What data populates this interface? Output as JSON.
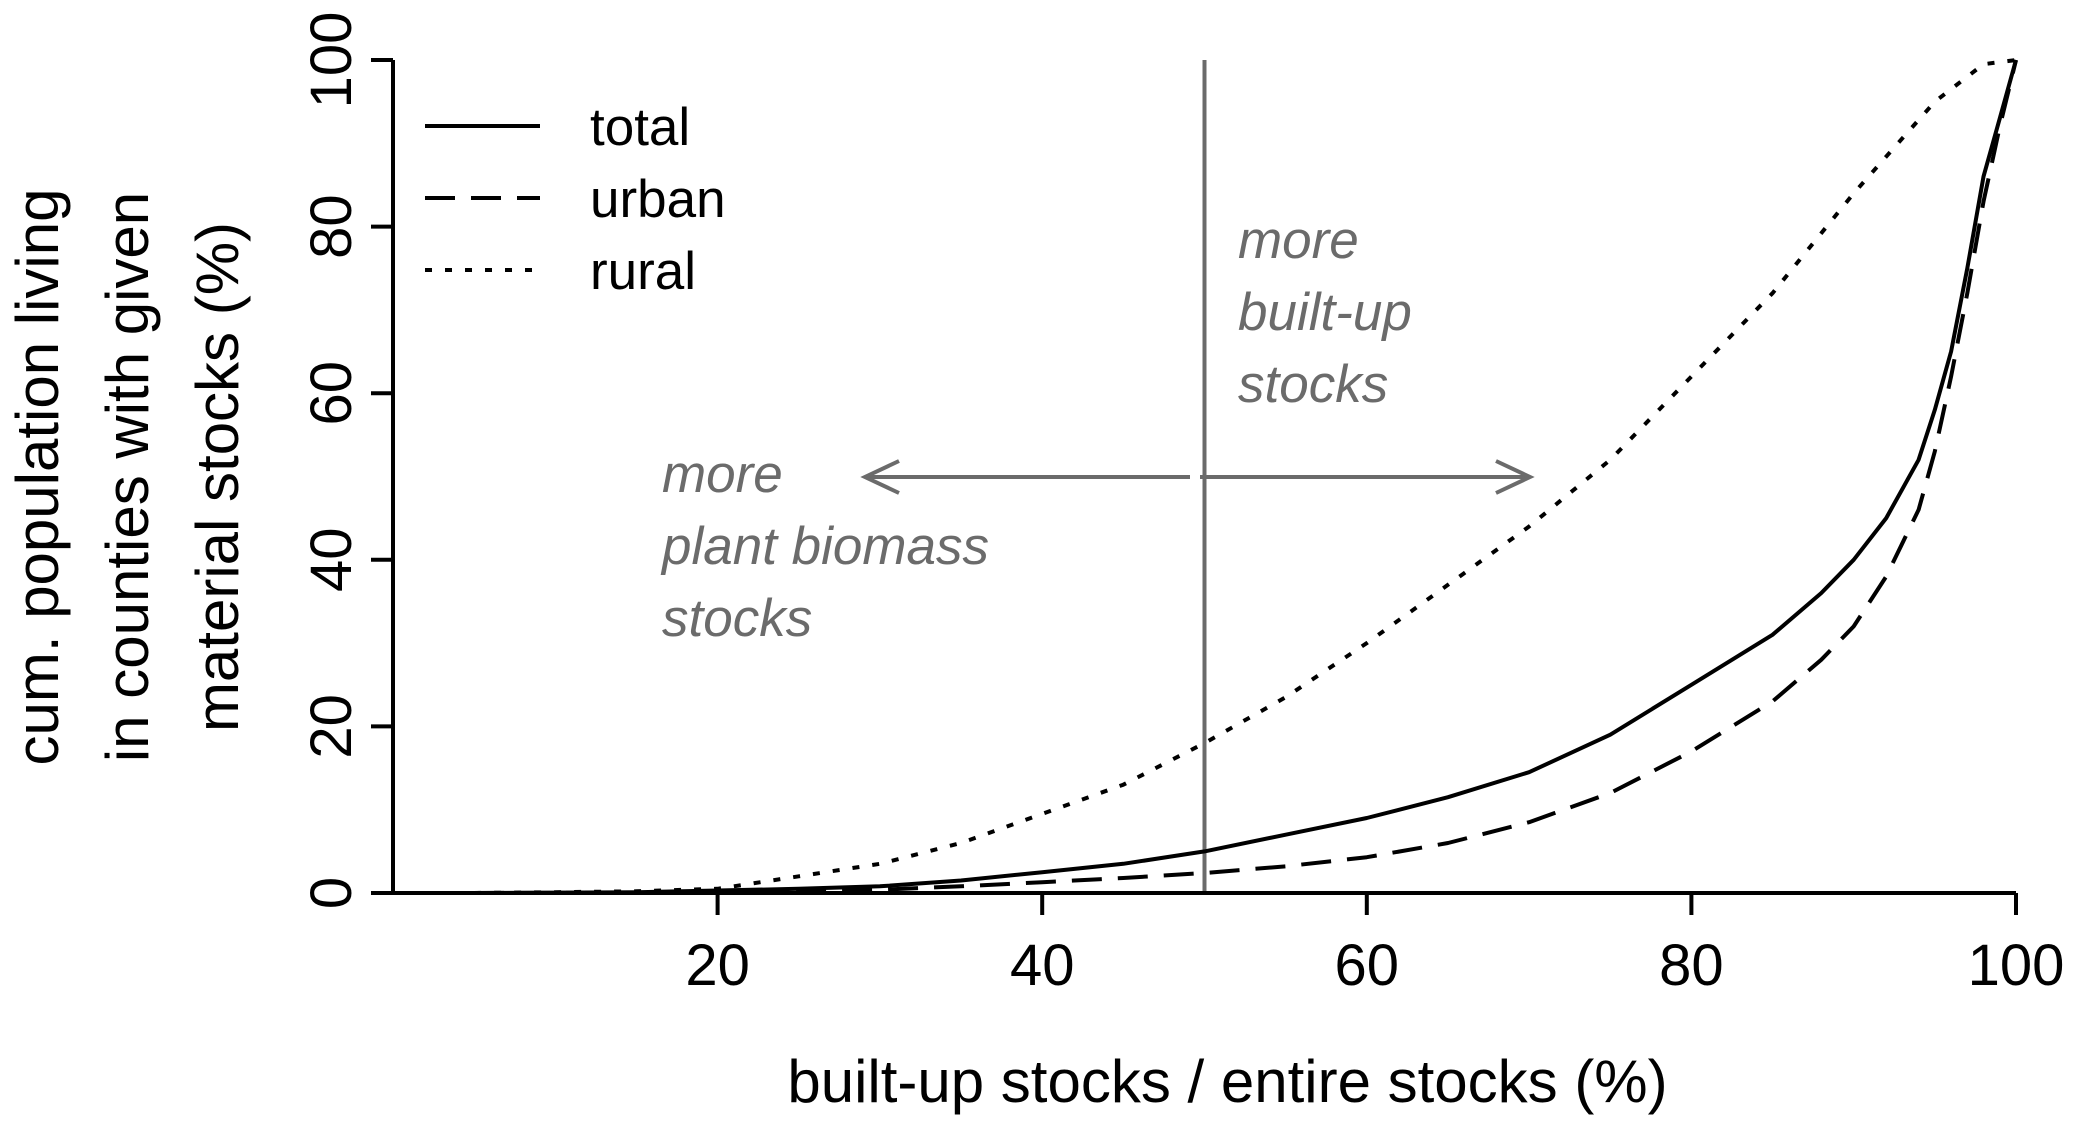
{
  "chart_data": {
    "type": "line",
    "title": "",
    "xlabel": "built-up stocks / entire stocks (%)",
    "ylabel_lines": [
      "cum. population living",
      "in counties with given",
      "material stocks (%)"
    ],
    "xlim": [
      0,
      100
    ],
    "ylim": [
      0,
      100
    ],
    "x_ticks": [
      20,
      40,
      60,
      80,
      100
    ],
    "y_ticks": [
      0,
      20,
      40,
      60,
      80,
      100
    ],
    "grid": false,
    "legend_placement": "top-left",
    "series": [
      {
        "name": "total",
        "line_style": "solid",
        "color": "#000000",
        "points": [
          [
            5,
            0
          ],
          [
            10,
            0.05
          ],
          [
            15,
            0.1
          ],
          [
            20,
            0.3
          ],
          [
            25,
            0.5
          ],
          [
            30,
            0.8
          ],
          [
            35,
            1.5
          ],
          [
            40,
            2.5
          ],
          [
            45,
            3.5
          ],
          [
            50,
            5
          ],
          [
            55,
            7
          ],
          [
            60,
            9
          ],
          [
            65,
            11.5
          ],
          [
            70,
            14.5
          ],
          [
            75,
            19
          ],
          [
            80,
            25
          ],
          [
            85,
            31
          ],
          [
            88,
            36
          ],
          [
            90,
            40
          ],
          [
            92,
            45
          ],
          [
            94,
            52
          ],
          [
            95,
            58
          ],
          [
            96,
            65
          ],
          [
            97,
            75
          ],
          [
            98,
            86
          ],
          [
            99,
            93
          ],
          [
            100,
            100
          ]
        ]
      },
      {
        "name": "urban",
        "line_style": "dashed",
        "color": "#000000",
        "points": [
          [
            5,
            0
          ],
          [
            10,
            0.02
          ],
          [
            15,
            0.05
          ],
          [
            20,
            0.1
          ],
          [
            25,
            0.2
          ],
          [
            30,
            0.4
          ],
          [
            35,
            0.8
          ],
          [
            40,
            1.3
          ],
          [
            45,
            1.8
          ],
          [
            50,
            2.4
          ],
          [
            55,
            3.2
          ],
          [
            60,
            4.3
          ],
          [
            65,
            6
          ],
          [
            70,
            8.5
          ],
          [
            75,
            12
          ],
          [
            80,
            17
          ],
          [
            85,
            23
          ],
          [
            88,
            28
          ],
          [
            90,
            32
          ],
          [
            92,
            38
          ],
          [
            94,
            46
          ],
          [
            95,
            53
          ],
          [
            96,
            62
          ],
          [
            97,
            72
          ],
          [
            98,
            83
          ],
          [
            99,
            92
          ],
          [
            100,
            100
          ]
        ]
      },
      {
        "name": "rural",
        "line_style": "dotted",
        "color": "#000000",
        "points": [
          [
            5,
            0
          ],
          [
            10,
            0.1
          ],
          [
            15,
            0.2
          ],
          [
            20,
            0.5
          ],
          [
            25,
            2
          ],
          [
            30,
            3.5
          ],
          [
            35,
            6
          ],
          [
            40,
            9.5
          ],
          [
            45,
            13
          ],
          [
            50,
            18
          ],
          [
            55,
            23.5
          ],
          [
            60,
            30
          ],
          [
            65,
            37
          ],
          [
            70,
            44
          ],
          [
            75,
            52
          ],
          [
            80,
            62
          ],
          [
            85,
            72
          ],
          [
            90,
            84
          ],
          [
            95,
            95
          ],
          [
            98,
            99.5
          ],
          [
            100,
            100
          ]
        ]
      }
    ],
    "reference_line": {
      "x": 50,
      "color": "#6b6b6b"
    },
    "annotations": [
      {
        "id": "built-up",
        "lines": [
          "more",
          "built-up",
          "stocks"
        ],
        "color": "#6b6b6b",
        "arrow_direction": "right"
      },
      {
        "id": "biomass",
        "lines": [
          "more",
          "plant biomass",
          "stocks"
        ],
        "color": "#6b6b6b",
        "arrow_direction": "left"
      }
    ]
  }
}
